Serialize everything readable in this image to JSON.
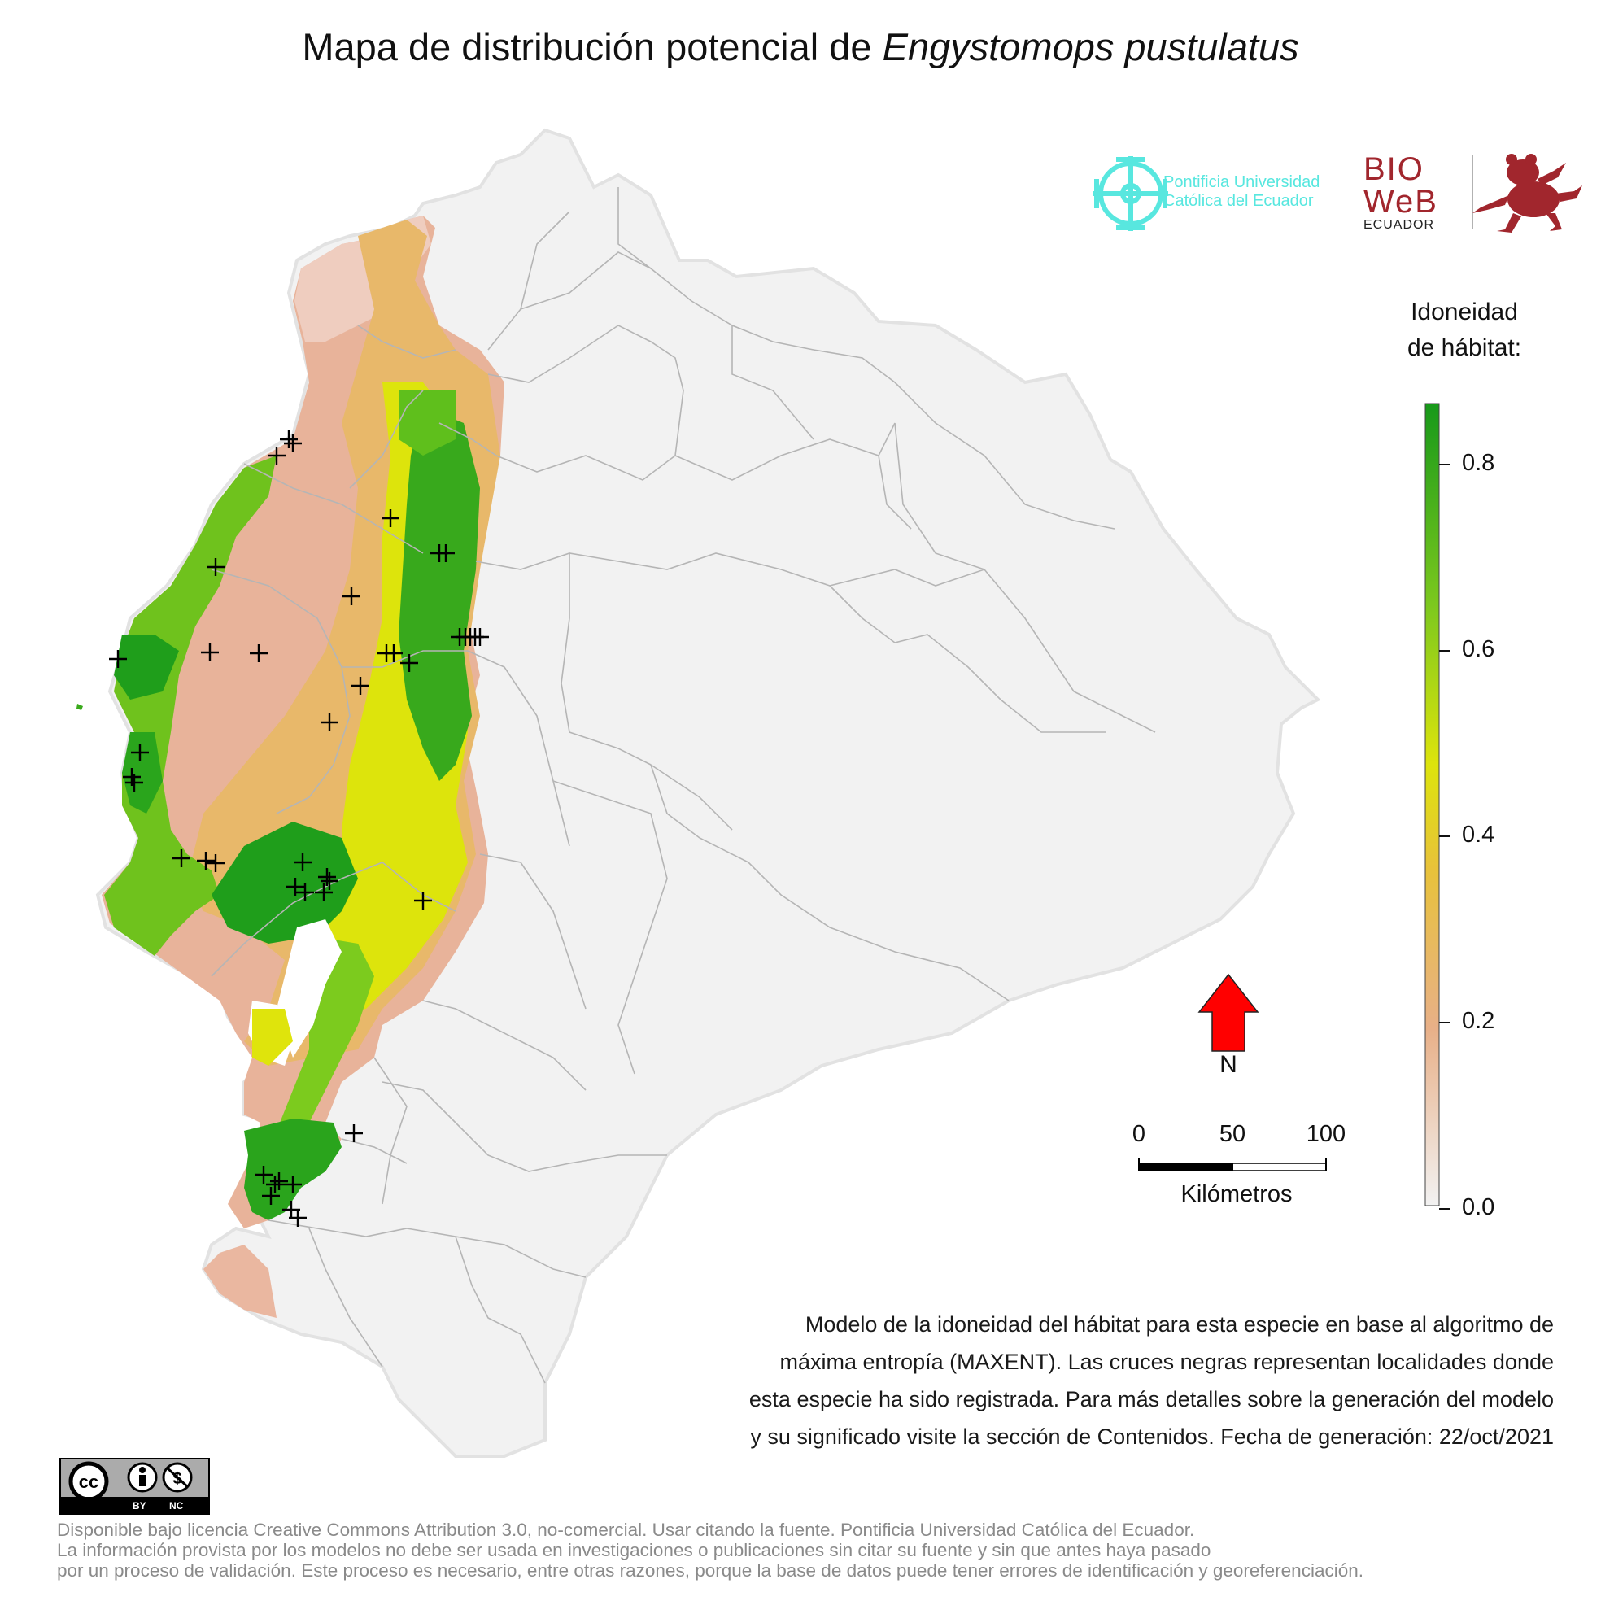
{
  "title": {
    "prefix": "Mapa de distribución potencial de ",
    "species": "Engystomops pustulatus"
  },
  "legend": {
    "title_line1": "Idoneidad",
    "title_line2": "de hábitat:",
    "ticks": [
      "0.8",
      "0.6",
      "0.4",
      "0.2",
      "0.0"
    ],
    "colors": [
      "#f2f2f2",
      "#e8b37a",
      "#e8cc2a",
      "#d8e40a",
      "#7fcc1e",
      "#1a9c1a"
    ]
  },
  "north_arrow": {
    "label": "N",
    "color": "#ff0000"
  },
  "scale_bar": {
    "labels": [
      "0",
      "50",
      "100"
    ],
    "unit": "Kilómetros"
  },
  "caption": [
    "Modelo de la idoneidad del hábitat para esta especie en base al algoritmo de",
    "máxima entropía (MAXENT). Las cruces negras representan localidades donde",
    "esta especie ha sido registrada. Para más detalles sobre la generación del modelo",
    "y su significado visite la sección de Contenidos. Fecha de generación: 22/oct/2021"
  ],
  "license": [
    "Disponible bajo licencia Creative Commons Attribution 3.0, no-comercial. Usar citando la fuente. Pontificia Universidad Católica del Ecuador.",
    "La información provista por los modelos no debe ser usada en investigaciones o publicaciones sin citar su fuente y sin que antes haya pasado",
    "por un proceso de validación. Este proceso es necesario, entre otras razones, porque la base de datos puede tener errores de identificación y georeferenciación."
  ],
  "logos": {
    "puc_line1": "Pontificia Universidad",
    "puc_line2": "Católica del Ecuador",
    "bioweb_line1": "BIO",
    "bioweb_line2": "WeB",
    "bioweb_line3": "ECUADOR",
    "cc_by": "BY",
    "cc_nc": "NC"
  },
  "map": {
    "base_color": "#f2f2f2",
    "border_color": "#b0b0b0",
    "records_marker": "black cross"
  }
}
